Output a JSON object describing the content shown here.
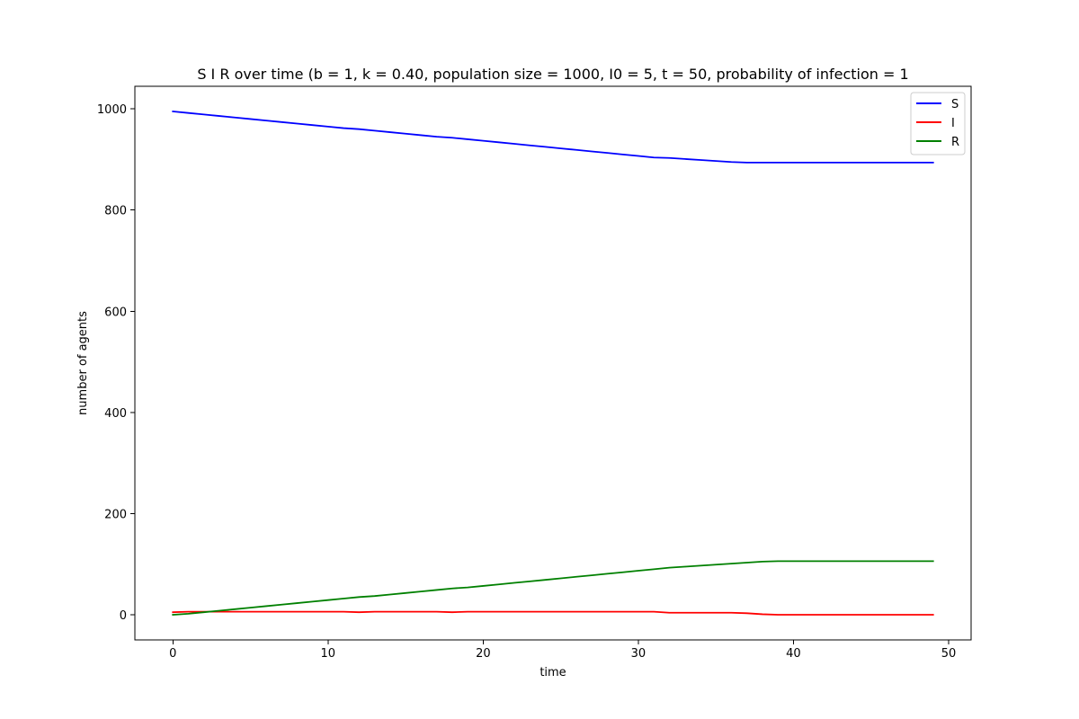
{
  "chart_data": {
    "type": "line",
    "title": "S I R over time (b = 1, k = 0.40, population size = 1000, I0 = 5, t = 50, probability of infection = 1",
    "xlabel": "time",
    "ylabel": "number of agents",
    "xlim": [
      -2.45,
      51.45
    ],
    "ylim": [
      -49.75,
      1044.75
    ],
    "xticks": [
      0,
      10,
      20,
      30,
      40,
      50
    ],
    "yticks": [
      0,
      200,
      400,
      600,
      800,
      1000
    ],
    "grid": false,
    "legend_position": "top-right",
    "x": [
      0,
      1,
      2,
      3,
      4,
      5,
      6,
      7,
      8,
      9,
      10,
      11,
      12,
      13,
      14,
      15,
      16,
      17,
      18,
      19,
      20,
      21,
      22,
      23,
      24,
      25,
      26,
      27,
      28,
      29,
      30,
      31,
      32,
      33,
      34,
      35,
      36,
      37,
      38,
      39,
      40,
      41,
      42,
      43,
      44,
      45,
      46,
      47,
      48,
      49
    ],
    "series": [
      {
        "name": "S",
        "color": "#0000ff",
        "values": [
          995,
          992,
          989,
          986,
          983,
          980,
          977,
          974,
          971,
          968,
          965,
          962,
          960,
          957,
          954,
          951,
          948,
          945,
          943,
          940,
          937,
          934,
          931,
          928,
          925,
          922,
          919,
          916,
          913,
          910,
          907,
          904,
          903,
          901,
          899,
          897,
          895,
          894,
          894,
          894,
          894,
          894,
          894,
          894,
          894,
          894,
          894,
          894,
          894,
          894
        ]
      },
      {
        "name": "I",
        "color": "#ff0000",
        "values": [
          5,
          6,
          6,
          6,
          6,
          6,
          6,
          6,
          6,
          6,
          6,
          6,
          5,
          6,
          6,
          6,
          6,
          6,
          5,
          6,
          6,
          6,
          6,
          6,
          6,
          6,
          6,
          6,
          6,
          6,
          6,
          6,
          4,
          4,
          4,
          4,
          4,
          3,
          1,
          0,
          0,
          0,
          0,
          0,
          0,
          0,
          0,
          0,
          0,
          0
        ]
      },
      {
        "name": "R",
        "color": "#008000",
        "values": [
          0,
          2,
          5,
          8,
          11,
          14,
          17,
          20,
          23,
          26,
          29,
          32,
          35,
          37,
          40,
          43,
          46,
          49,
          52,
          54,
          57,
          60,
          63,
          66,
          69,
          72,
          75,
          78,
          81,
          84,
          87,
          90,
          93,
          95,
          97,
          99,
          101,
          103,
          105,
          106,
          106,
          106,
          106,
          106,
          106,
          106,
          106,
          106,
          106,
          106
        ]
      }
    ]
  }
}
